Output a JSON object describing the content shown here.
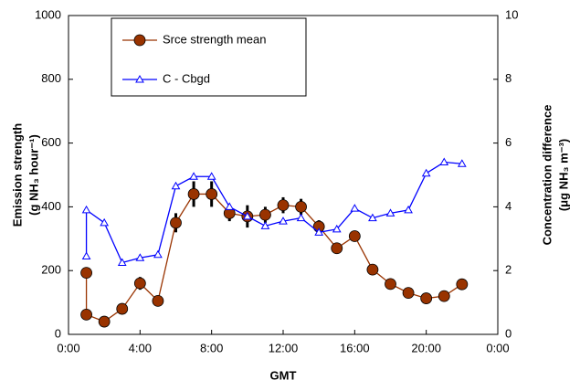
{
  "chart_data": {
    "type": "line",
    "x_label": "GMT",
    "y_label": [
      "Emission strength",
      "(g NH₃ hour⁻¹)"
    ],
    "y2_label": [
      "Concentration difference",
      "(μg NH₃ m⁻³)"
    ],
    "xlim": [
      0,
      24
    ],
    "xticks": [
      {
        "value": 0,
        "label": "0:00"
      },
      {
        "value": 4,
        "label": "4:00"
      },
      {
        "value": 8,
        "label": "8:00"
      },
      {
        "value": 12,
        "label": "12:00"
      },
      {
        "value": 16,
        "label": "16:00"
      },
      {
        "value": 20,
        "label": "20:00"
      },
      {
        "value": 24,
        "label": "0:00"
      }
    ],
    "ylim": [
      0,
      1000
    ],
    "yticks": [
      0,
      200,
      400,
      600,
      800,
      1000
    ],
    "y2lim": [
      0,
      10
    ],
    "y2ticks": [
      0,
      2,
      4,
      6,
      8,
      10
    ],
    "legend": "upper left",
    "series": [
      {
        "name": "Srce strength mean",
        "color": "#993300",
        "marker": "circle",
        "x": [
          1,
          1,
          2,
          3,
          4,
          5,
          6,
          7,
          8,
          9,
          10,
          11,
          12,
          13,
          14,
          15,
          16,
          17,
          18,
          19,
          20,
          21,
          22
        ],
        "values": [
          193,
          62,
          40,
          80,
          160,
          105,
          350,
          440,
          440,
          380,
          370,
          375,
          405,
          400,
          338,
          270,
          308,
          203,
          158,
          130,
          113,
          120,
          157
        ],
        "errors": [
          10,
          10,
          8,
          10,
          20,
          12,
          30,
          40,
          40,
          25,
          35,
          25,
          25,
          25,
          20,
          15,
          15,
          10,
          10,
          10,
          10,
          10,
          15
        ]
      },
      {
        "name": "C - Cbgd",
        "color": "#0000ff",
        "marker": "triangle",
        "axis": "y2",
        "x": [
          1,
          1,
          2,
          3,
          4,
          5,
          6,
          7,
          8,
          9,
          10,
          11,
          12,
          13,
          14,
          15,
          16,
          17,
          18,
          19,
          20,
          21,
          22
        ],
        "values": [
          2.45,
          3.9,
          3.5,
          2.25,
          2.4,
          2.5,
          4.65,
          4.95,
          4.95,
          4.0,
          3.7,
          3.4,
          3.55,
          3.65,
          3.2,
          3.3,
          3.95,
          3.65,
          3.8,
          3.9,
          5.05,
          5.4,
          5.35
        ]
      }
    ]
  }
}
